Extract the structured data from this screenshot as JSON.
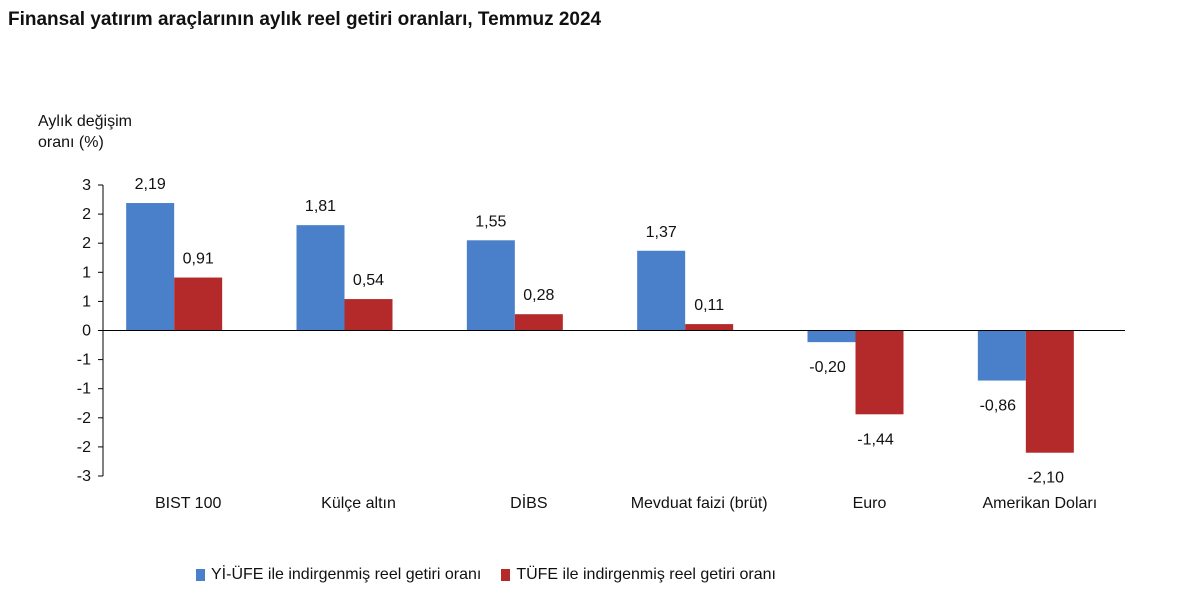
{
  "chart_data": {
    "type": "bar",
    "title": "Finansal yatırım araçlarının aylık reel getiri oranları, Temmuz 2024",
    "ylabel": [
      "Aylık değişim",
      "oranı (%)"
    ],
    "xlabel": "",
    "ylim": [
      -2.5,
      2.5
    ],
    "yticks": [
      2.5,
      2,
      1.5,
      1,
      0.5,
      0,
      -0.5,
      -1,
      -1.5,
      -2,
      -2.5
    ],
    "ytick_labels": [
      "3",
      "2",
      "2",
      "1",
      "1",
      "0",
      "-1",
      "-1",
      "-2",
      "-2",
      "-3"
    ],
    "categories": [
      "BIST 100",
      "Külçe altın",
      "DİBS",
      "Mevduat faizi (brüt)",
      "Euro",
      "Amerikan Doları"
    ],
    "series": [
      {
        "name": "Yİ-ÜFE ile indirgenmiş reel getiri oranı",
        "color": "#4a7fc9",
        "values": [
          2.19,
          1.81,
          1.55,
          1.37,
          -0.2,
          -0.86
        ],
        "labels": [
          "2,19",
          "1,81",
          "1,55",
          "1,37",
          "-0,20",
          "-0,86"
        ]
      },
      {
        "name": "TÜFE ile indirgenmiş reel getiri oranı",
        "color": "#b42a2a",
        "values": [
          0.91,
          0.54,
          0.28,
          0.11,
          -1.44,
          -2.1
        ],
        "labels": [
          "0,91",
          "0,54",
          "0,28",
          "0,11",
          "-1,44",
          "-2,10"
        ]
      }
    ],
    "legend": "bottom",
    "grid": false
  }
}
